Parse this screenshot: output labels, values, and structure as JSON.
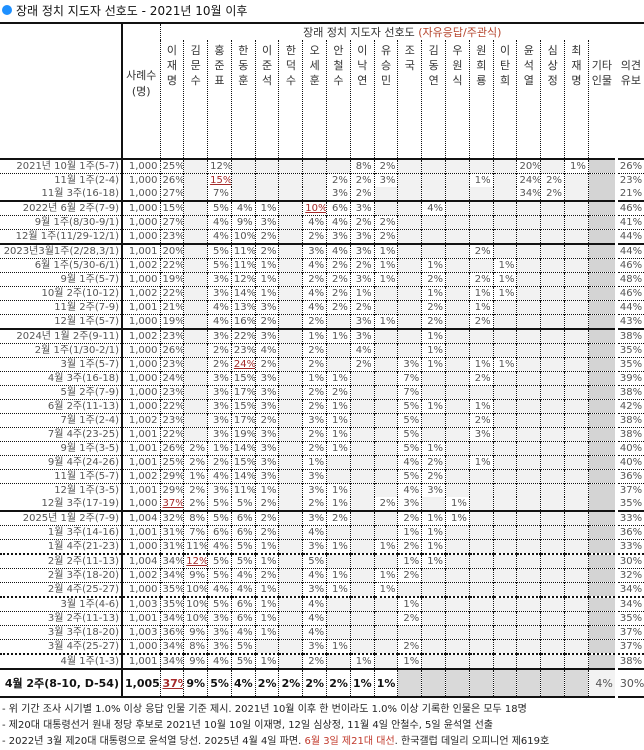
{
  "title": "장래 정치 지도자 선호도 - 2021년 10월 이후",
  "colors": {
    "accent": "#1e90ff",
    "highlight": "#a52a2a",
    "header_note": "#b5462e"
  },
  "header": {
    "group": "장래 정치 지도자 선호도 ",
    "group_note": "(자유응답/주관식)",
    "sample": [
      "사례수",
      "(명)"
    ],
    "other": [
      "기타",
      "인물"
    ],
    "undecided": [
      "의견",
      "유보"
    ]
  },
  "candidates": [
    [
      "이",
      "재",
      "명"
    ],
    [
      "김",
      "문",
      "수"
    ],
    [
      "홍",
      "준",
      "표"
    ],
    [
      "한",
      "동",
      "훈"
    ],
    [
      "이",
      "준",
      "석"
    ],
    [
      "한",
      "덕",
      "수"
    ],
    [
      "오",
      "세",
      "훈"
    ],
    [
      "안",
      "철",
      "수"
    ],
    [
      "이",
      "낙",
      "연"
    ],
    [
      "유",
      "승",
      "민"
    ],
    [
      "조",
      "국",
      ""
    ],
    [
      "김",
      "동",
      "연"
    ],
    [
      "우",
      "원",
      "식"
    ],
    [
      "원",
      "희",
      "룡"
    ],
    [
      "이",
      "탄",
      "희"
    ],
    [
      "윤",
      "석",
      "열"
    ],
    [
      "심",
      "상",
      "정"
    ],
    [
      "최",
      "재",
      "명"
    ]
  ],
  "rows": [
    {
      "label": "2021년 10월 1주(5-7)",
      "n": "1,000",
      "v": {
        "0": "25%",
        "2": "12%",
        "8": "8%",
        "9": "2%",
        "15": "20%",
        "17": "1%"
      },
      "und": "26%"
    },
    {
      "label": "11월 1주(2-4)",
      "n": "1,000",
      "v": {
        "0": "26%",
        "2": "15%",
        "7": "2%",
        "8": "2%",
        "9": "3%",
        "13": "1%",
        "15": "24%",
        "16": "2%"
      },
      "hl": 2,
      "und": "23%"
    },
    {
      "label": "11월 3주(16-18)",
      "n": "1,000",
      "v": {
        "0": "27%",
        "2": "7%",
        "7": "3%",
        "8": "2%",
        "15": "34%",
        "16": "2%"
      },
      "und": "21%"
    },
    {
      "label": "2022년 6월 2주(7-9)",
      "n": "1,000",
      "v": {
        "0": "15%",
        "2": "5%",
        "3": "4%",
        "4": "1%",
        "6": "10%",
        "7": "6%",
        "8": "3%",
        "11": "4%"
      },
      "hl": 6,
      "und": "46%"
    },
    {
      "label": "9월 1주(8/30-9/1)",
      "n": "1,000",
      "v": {
        "0": "27%",
        "2": "4%",
        "3": "9%",
        "4": "3%",
        "6": "4%",
        "7": "4%",
        "8": "2%",
        "9": "2%"
      },
      "und": "41%"
    },
    {
      "label": "12월 1주(11/29-12/1)",
      "n": "1,000",
      "v": {
        "0": "23%",
        "2": "4%",
        "3": "10%",
        "4": "2%",
        "6": "2%",
        "7": "3%",
        "8": "3%",
        "9": "2%"
      },
      "und": "44%"
    },
    {
      "label": "2023년3월1주(2/28,3/1)",
      "n": "1,001",
      "v": {
        "0": "20%",
        "2": "5%",
        "3": "11%",
        "4": "2%",
        "6": "3%",
        "7": "4%",
        "8": "3%",
        "9": "1%",
        "13": "2%"
      },
      "und": "44%"
    },
    {
      "label": "6월 1주(5/30-6/1)",
      "n": "1,002",
      "v": {
        "0": "22%",
        "2": "5%",
        "3": "11%",
        "4": "1%",
        "6": "4%",
        "7": "2%",
        "8": "2%",
        "9": "1%",
        "11": "1%",
        "14": "1%"
      },
      "und": "46%"
    },
    {
      "label": "9월 1주(5-7)",
      "n": "1,000",
      "v": {
        "0": "19%",
        "2": "3%",
        "3": "12%",
        "4": "1%",
        "6": "2%",
        "7": "2%",
        "8": "3%",
        "9": "1%",
        "11": "2%",
        "13": "2%",
        "14": "1%"
      },
      "und": "48%"
    },
    {
      "label": "10월 2주(10-12)",
      "n": "1,002",
      "v": {
        "0": "22%",
        "2": "3%",
        "3": "14%",
        "4": "1%",
        "6": "4%",
        "7": "2%",
        "8": "1%",
        "11": "1%",
        "13": "1%",
        "14": "1%"
      },
      "und": "46%"
    },
    {
      "label": "11월 2주(7-9)",
      "n": "1,001",
      "v": {
        "0": "21%",
        "2": "4%",
        "3": "13%",
        "4": "3%",
        "6": "4%",
        "7": "2%",
        "8": "2%",
        "11": "2%",
        "13": "1%"
      },
      "und": "44%"
    },
    {
      "label": "12월 1주(5-7)",
      "n": "1,000",
      "v": {
        "0": "19%",
        "2": "4%",
        "3": "16%",
        "4": "2%",
        "6": "2%",
        "8": "3%",
        "9": "1%",
        "11": "2%",
        "13": "2%"
      },
      "und": "43%"
    },
    {
      "label": "2024년 1월 2주(9-11)",
      "n": "1,002",
      "v": {
        "0": "23%",
        "2": "3%",
        "3": "22%",
        "4": "3%",
        "6": "1%",
        "7": "1%",
        "8": "3%",
        "11": "1%"
      },
      "und": "38%"
    },
    {
      "label": "2월 1주(1/30-2/1)",
      "n": "1,000",
      "v": {
        "0": "26%",
        "2": "2%",
        "3": "23%",
        "4": "4%",
        "6": "2%",
        "8": "4%",
        "11": "1%"
      },
      "und": "35%"
    },
    {
      "label": "3월 1주(5-7)",
      "n": "1,000",
      "v": {
        "0": "23%",
        "2": "2%",
        "3": "24%",
        "4": "2%",
        "6": "2%",
        "8": "2%",
        "10": "3%",
        "11": "1%",
        "13": "1%",
        "14": "1%"
      },
      "hl": 3,
      "und": "35%"
    },
    {
      "label": "4월 3주(16-18)",
      "n": "1,000",
      "v": {
        "0": "24%",
        "2": "3%",
        "3": "15%",
        "4": "3%",
        "6": "1%",
        "7": "1%",
        "10": "7%",
        "13": "2%"
      },
      "und": "39%"
    },
    {
      "label": "5월 2주(7-9)",
      "n": "1,000",
      "v": {
        "0": "23%",
        "2": "3%",
        "3": "17%",
        "4": "3%",
        "6": "2%",
        "7": "2%",
        "10": "7%"
      },
      "und": "38%"
    },
    {
      "label": "6월 2주(11-13)",
      "n": "1,000",
      "v": {
        "0": "22%",
        "2": "3%",
        "3": "15%",
        "4": "3%",
        "6": "2%",
        "7": "1%",
        "10": "5%",
        "11": "1%",
        "13": "1%"
      },
      "und": "42%"
    },
    {
      "label": "7월 1주(2-4)",
      "n": "1,002",
      "v": {
        "0": "23%",
        "2": "3%",
        "3": "17%",
        "4": "2%",
        "6": "3%",
        "7": "1%",
        "10": "5%",
        "13": "2%"
      },
      "und": "38%"
    },
    {
      "label": "7월 4주(23-25)",
      "n": "1,001",
      "v": {
        "0": "22%",
        "2": "3%",
        "3": "19%",
        "4": "3%",
        "6": "2%",
        "7": "1%",
        "10": "5%",
        "13": "3%"
      },
      "und": "38%"
    },
    {
      "label": "9월 1주(3-5)",
      "n": "1,001",
      "v": {
        "0": "26%",
        "1": "2%",
        "2": "1%",
        "3": "14%",
        "4": "3%",
        "6": "2%",
        "7": "1%",
        "10": "5%",
        "11": "1%"
      },
      "und": "40%"
    },
    {
      "label": "9월 4주(24-26)",
      "n": "1,001",
      "v": {
        "0": "25%",
        "1": "2%",
        "2": "2%",
        "3": "15%",
        "4": "3%",
        "6": "1%",
        "10": "4%",
        "11": "2%",
        "13": "1%"
      },
      "und": "40%"
    },
    {
      "label": "11월 1주(5-7)",
      "n": "1,002",
      "v": {
        "0": "29%",
        "1": "1%",
        "2": "4%",
        "3": "14%",
        "4": "3%",
        "6": "3%",
        "10": "5%",
        "11": "2%"
      },
      "und": "36%"
    },
    {
      "label": "12월 1주(3-5)",
      "n": "1,001",
      "v": {
        "0": "29%",
        "1": "2%",
        "2": "3%",
        "3": "11%",
        "4": "1%",
        "6": "3%",
        "7": "1%",
        "10": "4%",
        "11": "3%"
      },
      "und": "37%"
    },
    {
      "label": "12월 3주(17-19)",
      "n": "1,000",
      "v": {
        "0": "37%",
        "1": "2%",
        "2": "5%",
        "3": "5%",
        "4": "2%",
        "6": "2%",
        "7": "1%",
        "9": "2%",
        "10": "3%",
        "12": "1%"
      },
      "hl": 0,
      "und": "35%"
    },
    {
      "label": "2025년 1월 2주(7-9)",
      "n": "1,004",
      "v": {
        "0": "32%",
        "1": "8%",
        "2": "5%",
        "3": "6%",
        "4": "2%",
        "6": "3%",
        "7": "2%",
        "10": "2%",
        "11": "1%",
        "12": "1%"
      },
      "und": "33%"
    },
    {
      "label": "1월 3주(14-16)",
      "n": "1,001",
      "v": {
        "0": "31%",
        "1": "7%",
        "2": "6%",
        "3": "6%",
        "4": "2%",
        "6": "4%",
        "10": "1%",
        "11": "1%"
      },
      "und": "36%"
    },
    {
      "label": "1월 4주(21-23)",
      "n": "1,000",
      "v": {
        "0": "31%",
        "1": "11%",
        "2": "4%",
        "3": "5%",
        "4": "1%",
        "6": "3%",
        "7": "1%",
        "9": "1%",
        "10": "2%",
        "11": "1%"
      },
      "und": "33%"
    },
    {
      "label": "2월 2주(11-13)",
      "n": "1,004",
      "v": {
        "0": "34%",
        "1": "12%",
        "2": "5%",
        "3": "5%",
        "4": "1%",
        "6": "5%",
        "10": "1%",
        "11": "1%"
      },
      "hl": 1,
      "und": "30%"
    },
    {
      "label": "2월 3주(18-20)",
      "n": "1,002",
      "v": {
        "0": "34%",
        "1": "9%",
        "2": "5%",
        "3": "4%",
        "4": "2%",
        "6": "4%",
        "7": "1%",
        "9": "1%",
        "10": "2%"
      },
      "und": "32%"
    },
    {
      "label": "2월 4주(25-27)",
      "n": "1,000",
      "v": {
        "0": "35%",
        "1": "10%",
        "2": "4%",
        "3": "4%",
        "4": "1%",
        "6": "3%",
        "7": "1%",
        "9": "1%"
      },
      "und": "34%"
    },
    {
      "label": "3월 1주(4-6)",
      "n": "1,003",
      "v": {
        "0": "35%",
        "1": "10%",
        "2": "5%",
        "3": "6%",
        "4": "1%",
        "6": "4%",
        "10": "1%"
      },
      "und": "34%"
    },
    {
      "label": "3월 2주(11-13)",
      "n": "1,001",
      "v": {
        "0": "34%",
        "1": "10%",
        "2": "3%",
        "3": "6%",
        "4": "1%",
        "6": "4%",
        "10": "2%"
      },
      "und": "35%"
    },
    {
      "label": "3월 3주(18-20)",
      "n": "1,003",
      "v": {
        "0": "36%",
        "1": "9%",
        "2": "3%",
        "3": "4%",
        "4": "1%",
        "6": "4%"
      },
      "und": "37%"
    },
    {
      "label": "3월 4주(25-27)",
      "n": "1,000",
      "v": {
        "0": "34%",
        "1": "8%",
        "2": "3%",
        "3": "5%",
        "6": "3%",
        "7": "1%",
        "10": "2%"
      },
      "und": "37%"
    },
    {
      "label": "4월 1주(1-3)",
      "n": "1,001",
      "v": {
        "0": "34%",
        "1": "9%",
        "2": "4%",
        "3": "5%",
        "4": "1%",
        "6": "2%",
        "8": "1%",
        "10": "1%"
      },
      "und": "38%"
    }
  ],
  "final": {
    "label": "4월 2주(8-10, D-54)",
    "n": "1,005",
    "v": {
      "0": "37%",
      "1": "9%",
      "2": "5%",
      "3": "4%",
      "4": "2%",
      "5": "2%",
      "6": "2%",
      "7": "2%",
      "8": "1%",
      "9": "1%"
    },
    "hl": 0,
    "other": "4%",
    "und": "30%"
  },
  "notes": [
    {
      "text": "- 위 기간 조사 시기별 1.0% 이상 응답 인물 기준 제시. 2021년 10월 이후 한 번이라도 1.0% 이상 기록한 인물은 모두 18명"
    },
    {
      "text": "- 제20대 대통령선거 원내 정당 후보로 2021년 10월 10일 이재명, 12일 심상정, 11월 4일 안철수, 5일 윤석열 선출"
    },
    {
      "pre": "- 2022년 3월 제20대 대통령으로 윤석열 당선. 2025년 4월 4일 파면. ",
      "red": "6월 3일 제21대 대선",
      "post": ". 한국갤럽 데일리 오피니언 제619호"
    }
  ]
}
